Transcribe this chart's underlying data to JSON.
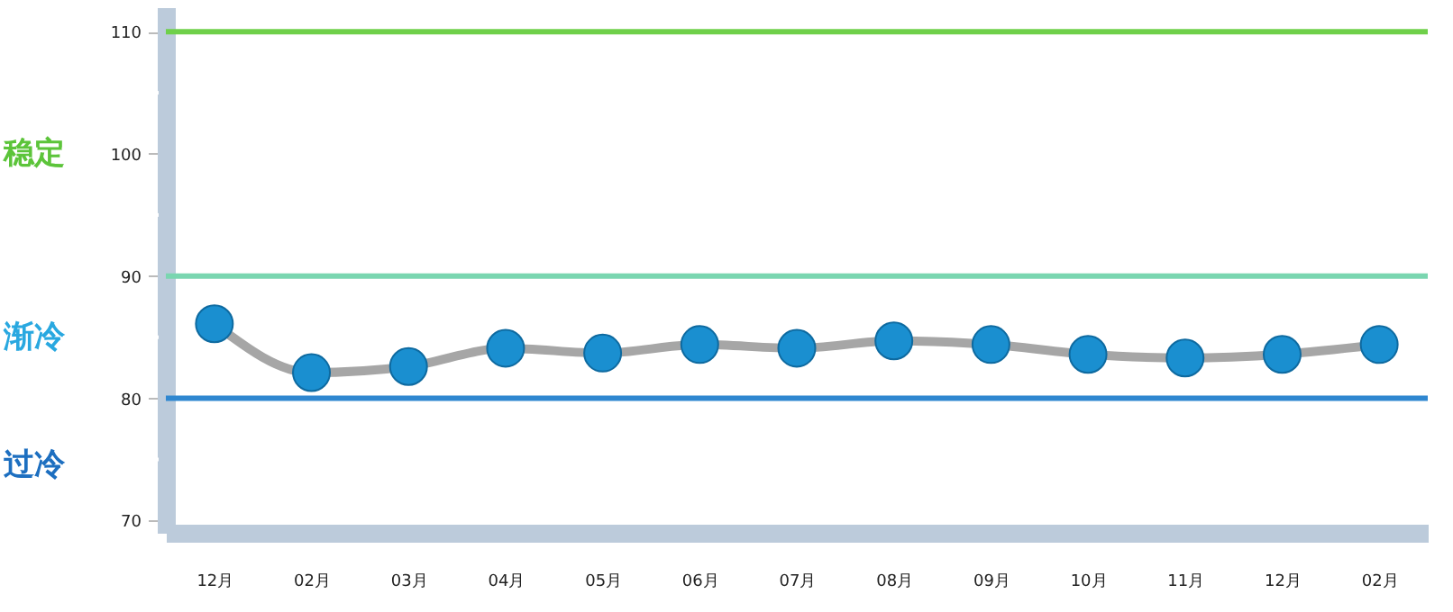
{
  "chart_data": {
    "type": "line",
    "categories": [
      "12月",
      "02月",
      "03月",
      "04月",
      "05月",
      "06月",
      "07月",
      "08月",
      "09月",
      "10月",
      "11月",
      "12月",
      "02月"
    ],
    "series": [
      {
        "color": "#1a8fd0",
        "values": [
          86.1,
          82.1,
          82.6,
          84.1,
          83.7,
          84.4,
          84.1,
          84.7,
          84.4,
          83.6,
          83.3,
          83.6,
          84.4
        ]
      }
    ],
    "ylim": [
      69,
      112
    ],
    "yticks": [
      70,
      {
        "value": 75,
        "label": null
      },
      80,
      {
        "value": 85,
        "label": null
      },
      90,
      {
        "value": 95,
        "label": null
      },
      100,
      {
        "value": 105,
        "label": null
      },
      110
    ],
    "ref_lines": [
      {
        "axis": "y",
        "value": 110,
        "color": "#6fd04a"
      },
      {
        "axis": "y",
        "value": 90,
        "color": "#7ad6b0"
      },
      {
        "axis": "y",
        "value": 80,
        "color": "#2f87d0"
      }
    ],
    "annotations": [
      "稳定",
      "渐冷",
      "过冷"
    ],
    "grid": false,
    "marker": "circle",
    "line_style": "solid"
  }
}
